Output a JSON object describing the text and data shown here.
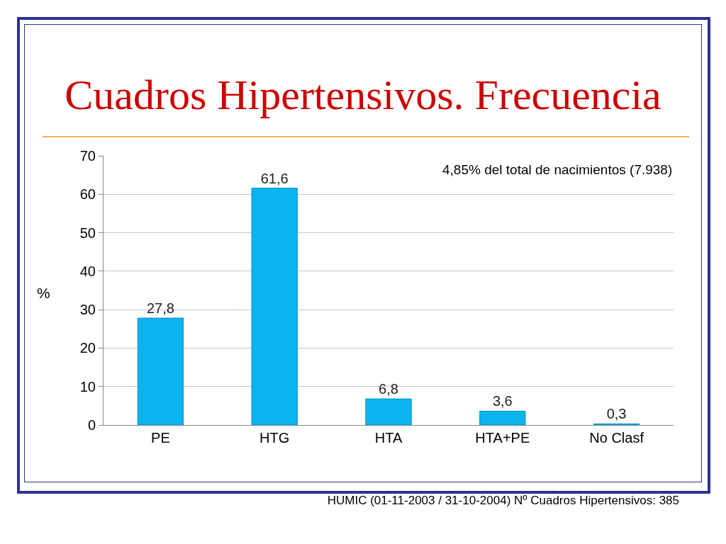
{
  "chart_data": {
    "type": "bar",
    "title": "Cuadros Hipertensivos. Frecuencia",
    "ylabel": "%",
    "categories": [
      "PE",
      "HTG",
      "HTA",
      "HTA+PE",
      "No Clasf"
    ],
    "values": [
      27.8,
      61.6,
      6.8,
      3.6,
      0.3
    ],
    "value_labels": [
      "27,8",
      "61,6",
      "6,8",
      "3,6",
      "0,3"
    ],
    "color": "#0bb4ef",
    "ylim": [
      0,
      70
    ],
    "yticks": [
      0,
      10,
      20,
      30,
      40,
      50,
      60,
      70
    ],
    "grid": "y",
    "annotations": [
      "4,85% del total de nacimientos (7.938)",
      "HUMIC (01-11-2003 / 31-10-2004) Nº Cuadros Hipertensivos: 385"
    ]
  }
}
